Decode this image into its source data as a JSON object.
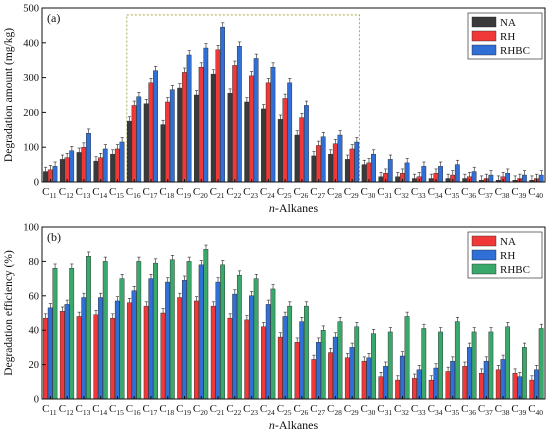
{
  "chart_data": [
    {
      "type": "bar",
      "panel_label": "(a)",
      "ylabel": "Degradation amount (mg/kg)",
      "xlabel_prefix": "n",
      "xlabel": "-Alkanes",
      "ylim": [
        0,
        500
      ],
      "yticks": [
        0,
        100,
        200,
        300,
        400,
        500
      ],
      "categories": [
        "C11",
        "C12",
        "C13",
        "C14",
        "C15",
        "C16",
        "C17",
        "C18",
        "C19",
        "C20",
        "C21",
        "C22",
        "C23",
        "C24",
        "C25",
        "C26",
        "C27",
        "C28",
        "C29",
        "C30",
        "C31",
        "C32",
        "C33",
        "C34",
        "C35",
        "C36",
        "C37",
        "C38",
        "C39",
        "C40"
      ],
      "legend_position": "top-right",
      "highlight_range": [
        "C16",
        "C29"
      ],
      "series": [
        {
          "name": "NA",
          "color": "#3a3a3a",
          "values": [
            30,
            65,
            85,
            60,
            80,
            175,
            225,
            165,
            270,
            250,
            310,
            255,
            230,
            210,
            180,
            135,
            75,
            80,
            65,
            50,
            15,
            15,
            10,
            10,
            10,
            10,
            5,
            5,
            5,
            5
          ]
        },
        {
          "name": "RH",
          "color": "#f03838",
          "values": [
            35,
            70,
            100,
            70,
            95,
            220,
            285,
            230,
            315,
            330,
            380,
            335,
            305,
            285,
            240,
            185,
            105,
            110,
            95,
            55,
            25,
            25,
            15,
            25,
            20,
            15,
            10,
            15,
            10,
            10
          ]
        },
        {
          "name": "RHBC",
          "color": "#2f6fd6",
          "values": [
            45,
            90,
            140,
            95,
            115,
            245,
            320,
            265,
            365,
            385,
            445,
            390,
            355,
            330,
            285,
            220,
            130,
            135,
            115,
            80,
            65,
            55,
            45,
            45,
            50,
            30,
            20,
            25,
            20,
            20
          ]
        }
      ]
    },
    {
      "type": "bar",
      "panel_label": "(b)",
      "ylabel": "Degradation efficiency (%)",
      "xlabel_prefix": "n",
      "xlabel": "-Alkanes",
      "ylim": [
        0,
        100
      ],
      "yticks": [
        0,
        20,
        40,
        60,
        80,
        100
      ],
      "categories": [
        "C11",
        "C12",
        "C13",
        "C14",
        "C15",
        "C16",
        "C17",
        "C18",
        "C19",
        "C20",
        "C21",
        "C22",
        "C23",
        "C24",
        "C25",
        "C26",
        "C27",
        "C28",
        "C29",
        "C30",
        "C31",
        "C32",
        "C33",
        "C34",
        "C35",
        "C36",
        "C37",
        "C38",
        "C39",
        "C40"
      ],
      "legend_position": "top-right",
      "series": [
        {
          "name": "NA",
          "color": "#f03838",
          "values": [
            47,
            51,
            48,
            49,
            47,
            56,
            54,
            50,
            59,
            57,
            54,
            47,
            46,
            42,
            36,
            33,
            23,
            27,
            24,
            22,
            13,
            11,
            12,
            11,
            16,
            19,
            15,
            17,
            15,
            11
          ]
        },
        {
          "name": "RH",
          "color": "#2f6fd6",
          "values": [
            53,
            55,
            59,
            59,
            57,
            63,
            70,
            68,
            69,
            78,
            68,
            61,
            60,
            55,
            48,
            45,
            33,
            36,
            30,
            24,
            19,
            25,
            17,
            18,
            22,
            30,
            22,
            23,
            13,
            17
          ]
        },
        {
          "name": "RHBC",
          "color": "#3aa86b",
          "values": [
            76,
            76,
            83,
            80,
            70,
            80,
            79,
            81,
            80,
            87,
            78,
            72,
            70,
            64,
            54,
            54,
            40,
            45,
            42,
            38,
            39,
            48,
            41,
            39,
            45,
            39,
            39,
            42,
            30,
            41
          ]
        }
      ]
    }
  ]
}
